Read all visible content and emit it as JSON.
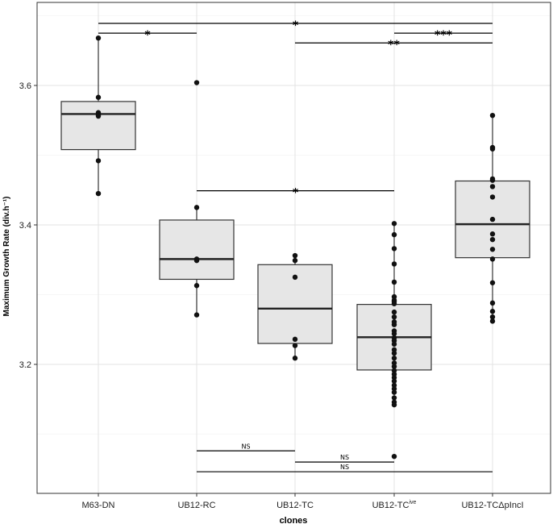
{
  "chart_data": {
    "type": "box",
    "title": "",
    "xlabel": "clones",
    "ylabel": "Maximum Growth Rate (div.h⁻¹)",
    "ylim": [
      3.02,
      3.71
    ],
    "yticks": [
      3.2,
      3.4,
      3.6
    ],
    "ytick_labels": [
      "3.2",
      "3.4",
      "3.6"
    ],
    "categories": [
      "M63-DN",
      "UB12-RC",
      "UB12-TC",
      "UB12-TCive",
      "UB12-TCΔpIncI"
    ],
    "category_labels": [
      {
        "main": "M63-DN",
        "sup": ""
      },
      {
        "main": "UB12-RC",
        "sup": ""
      },
      {
        "main": "UB12-TC",
        "sup": ""
      },
      {
        "main": "UB12-TC",
        "sup": "ive"
      },
      {
        "main": "UB12-TCΔpIncI",
        "sup": ""
      }
    ],
    "boxes": [
      {
        "whisker_low": 3.445,
        "q1": 3.508,
        "median": 3.559,
        "q3": 3.577,
        "whisker_high": 3.668
      },
      {
        "whisker_low": 3.271,
        "q1": 3.322,
        "median": 3.351,
        "q3": 3.407,
        "whisker_high": 3.425
      },
      {
        "whisker_low": 3.209,
        "q1": 3.23,
        "median": 3.28,
        "q3": 3.343,
        "whisker_high": 3.356
      },
      {
        "whisker_low": 3.142,
        "q1": 3.192,
        "median": 3.239,
        "q3": 3.286,
        "whisker_high": 3.402
      },
      {
        "whisker_low": 3.262,
        "q1": 3.353,
        "median": 3.401,
        "q3": 3.463,
        "whisker_high": 3.557
      }
    ],
    "points": [
      [
        3.668,
        3.583,
        3.561,
        3.558,
        3.556,
        3.492,
        3.445
      ],
      [
        3.604,
        3.425,
        3.351,
        3.349,
        3.313,
        3.271
      ],
      [
        3.356,
        3.349,
        3.325,
        3.236,
        3.227,
        3.209
      ],
      [
        3.402,
        3.386,
        3.366,
        3.344,
        3.318,
        3.297,
        3.292,
        3.29,
        3.287,
        3.275,
        3.268,
        3.261,
        3.257,
        3.248,
        3.244,
        3.238,
        3.234,
        3.229,
        3.221,
        3.216,
        3.209,
        3.202,
        3.197,
        3.191,
        3.186,
        3.181,
        3.176,
        3.17,
        3.165,
        3.16,
        3.152,
        3.146,
        3.142,
        3.068
      ],
      [
        3.557,
        3.511,
        3.509,
        3.466,
        3.464,
        3.455,
        3.44,
        3.408,
        3.387,
        3.379,
        3.365,
        3.351,
        3.317,
        3.288,
        3.276,
        3.268,
        3.262
      ]
    ],
    "significance_brackets": [
      {
        "from": 0,
        "to": 4,
        "level": 3.689,
        "label": "*"
      },
      {
        "from": 0,
        "to": 1,
        "level": 3.675,
        "label": "*"
      },
      {
        "from": 3,
        "to": 4,
        "level": 3.675,
        "label": "***"
      },
      {
        "from": 2,
        "to": 4,
        "level": 3.661,
        "label": "**"
      },
      {
        "from": 1,
        "to": 3,
        "level": 3.449,
        "label": "*"
      },
      {
        "from": 1,
        "to": 2,
        "level": 3.076,
        "label": "NS"
      },
      {
        "from": 2,
        "to": 3,
        "level": 3.06,
        "label": "NS"
      },
      {
        "from": 1,
        "to": 4,
        "level": 3.046,
        "label": "NS"
      }
    ],
    "grid": true,
    "legend": "none"
  }
}
